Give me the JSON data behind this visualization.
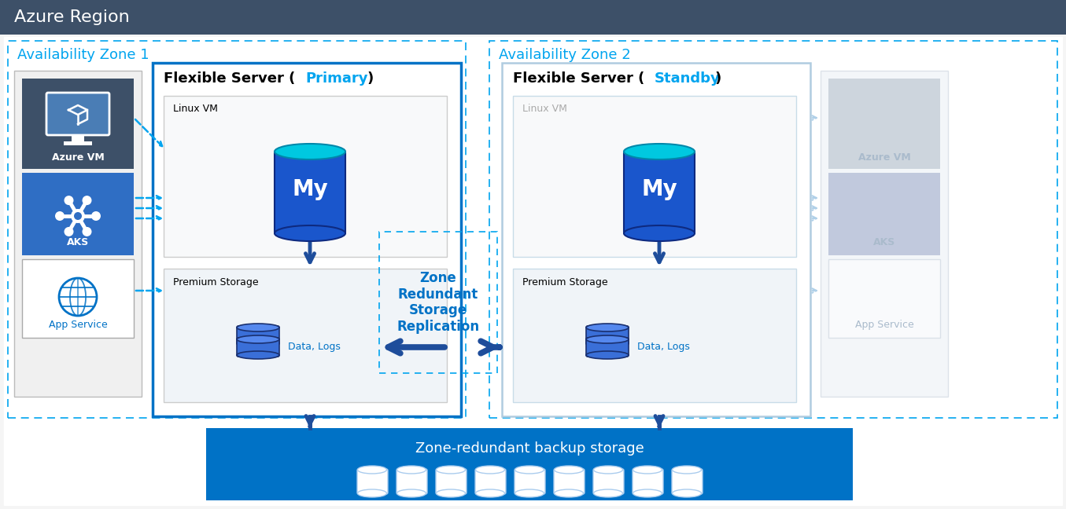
{
  "title": "Azure Region",
  "title_bg": "#3d5068",
  "title_fg": "#ffffff",
  "bg_color": "#ffffff",
  "zone1_label": "Availability Zone 1",
  "zone2_label": "Availability Zone 2",
  "zone_color": "#00a4ef",
  "flex_primary_label": "Flexible Server (",
  "flex_primary_accent": "Primary",
  "flex_standby_accent": "Standby",
  "linux_vm_label": "Linux VM",
  "premium_storage_label": "Premium Storage",
  "data_logs_label": "Data, Logs",
  "zone_replication_label": "Zone\nRedundant\nStorage\nReplication",
  "backup_label": "Zone-redundant backup storage",
  "azure_vm_label": "Azure VM",
  "aks_label": "AKS",
  "app_service_label": "App Service",
  "blue_light": "#00a4ef",
  "blue_accent": "#0072c6",
  "azure_vm_bg": "#3d5068",
  "aks_bg": "#2f6ec4",
  "gray_bg": "#f0f0f0",
  "dashed_blue": "#00a4ef",
  "arrow_blue": "#1e4d9b"
}
